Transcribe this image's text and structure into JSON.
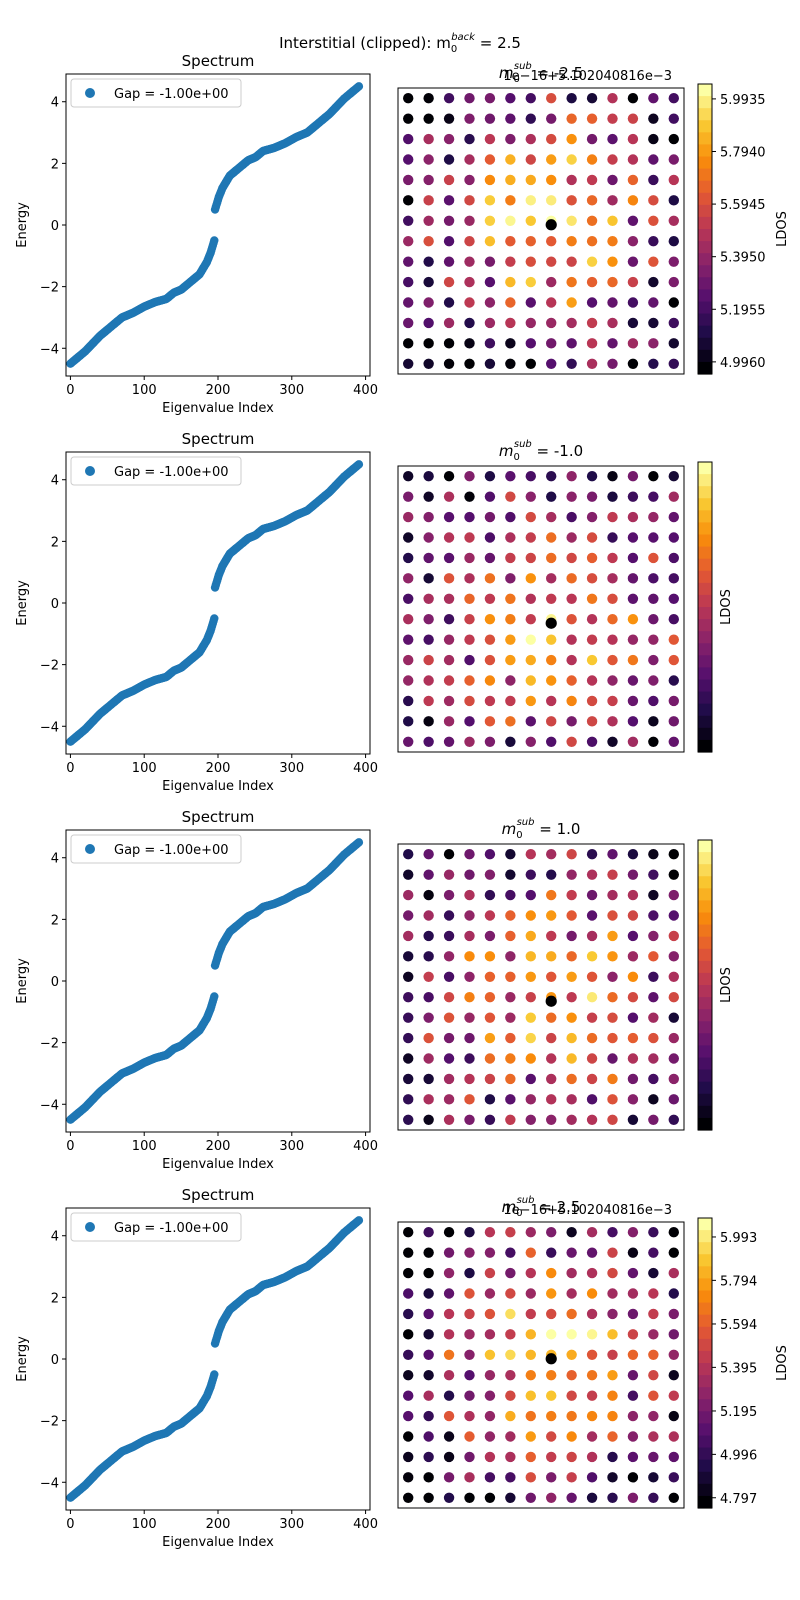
{
  "figure": {
    "suptitle_prefix": "Interstitial (clipped): m",
    "suptitle_sub": "0",
    "suptitle_sup": "back",
    "suptitle_suffix": " = 2.5"
  },
  "colors": {
    "series": "#1f77b4",
    "background": "#ffffff",
    "vacancy_marker": "#000000",
    "colormap": "inferno"
  },
  "chart_data": [
    {
      "type": "scatter",
      "title": "Spectrum",
      "xlabel": "Eigenvalue Index",
      "ylabel": "Energy",
      "xlim": [
        -6,
        406
      ],
      "ylim": [
        -4.9,
        4.9
      ],
      "xticks": [
        0,
        100,
        200,
        300,
        400
      ],
      "yticks": [
        -4,
        -2,
        0,
        2,
        4
      ],
      "legend": "upper-left",
      "series": [
        {
          "name": "Gap = -1.00e+00",
          "color": "#1f77b4",
          "n_points": 392,
          "x_knots": [
            0,
            10,
            20,
            30,
            40,
            55,
            70,
            85,
            100,
            115,
            130,
            140,
            150,
            160,
            175,
            185,
            190,
            195
          ],
          "y_knots": [
            -4.5,
            -4.3,
            -4.1,
            -3.85,
            -3.6,
            -3.3,
            -3.0,
            -2.85,
            -2.65,
            -2.5,
            -2.4,
            -2.2,
            -2.1,
            -1.9,
            -1.6,
            -1.2,
            -0.9,
            -0.5
          ]
        }
      ]
    },
    {
      "type": "heatmap",
      "title_prefix": "m",
      "title_sub": "0",
      "title_sup": "sub",
      "title_suffix": " = -2.5",
      "offset_text": "1e−16+5.102040816e−3",
      "colorbar_label": "LDOS",
      "colorbar_ticks": [
        "5.9935",
        "5.7940",
        "5.5945",
        "5.3950",
        "5.1955",
        "4.9960"
      ],
      "colorbar_tick_values": [
        5.9935,
        5.794,
        5.5945,
        5.395,
        5.1955,
        4.996
      ],
      "value_range": [
        4.95,
        6.05
      ],
      "grid_size": [
        14,
        14
      ],
      "vacancy_site": [
        7,
        6
      ],
      "pattern": "center"
    },
    {
      "type": "scatter",
      "title": "Spectrum",
      "xlabel": "Eigenvalue Index",
      "ylabel": "Energy",
      "xlim": [
        -6,
        406
      ],
      "ylim": [
        -4.9,
        4.9
      ],
      "xticks": [
        0,
        100,
        200,
        300,
        400
      ],
      "yticks": [
        -4,
        -2,
        0,
        2,
        4
      ],
      "legend": "upper-left",
      "series": [
        {
          "name": "Gap = -1.00e+00",
          "color": "#1f77b4",
          "n_points": 392,
          "x_knots": [
            0,
            10,
            20,
            30,
            40,
            55,
            70,
            85,
            100,
            115,
            130,
            140,
            150,
            160,
            175,
            185,
            190,
            195
          ],
          "y_knots": [
            -4.5,
            -4.3,
            -4.1,
            -3.85,
            -3.6,
            -3.3,
            -3.0,
            -2.85,
            -2.65,
            -2.5,
            -2.4,
            -2.2,
            -2.1,
            -1.9,
            -1.6,
            -1.2,
            -0.9,
            -0.5
          ]
        }
      ]
    },
    {
      "type": "heatmap",
      "title_prefix": "m",
      "title_sub": "0",
      "title_sup": "sub",
      "title_suffix": " = -1.0",
      "offset_text": "",
      "colorbar_label": "LDOS",
      "colorbar_ticks": [],
      "colorbar_tick_values": [],
      "value_range": [
        0,
        1
      ],
      "grid_size": [
        14,
        14
      ],
      "vacancy_site": [
        7,
        7
      ],
      "pattern": "ring"
    },
    {
      "type": "scatter",
      "title": "Spectrum",
      "xlabel": "Eigenvalue Index",
      "ylabel": "Energy",
      "xlim": [
        -6,
        406
      ],
      "ylim": [
        -4.9,
        4.9
      ],
      "xticks": [
        0,
        100,
        200,
        300,
        400
      ],
      "yticks": [
        -4,
        -2,
        0,
        2,
        4
      ],
      "legend": "upper-left",
      "series": [
        {
          "name": "Gap = -1.00e+00",
          "color": "#1f77b4",
          "n_points": 392,
          "x_knots": [
            0,
            10,
            20,
            30,
            40,
            55,
            70,
            85,
            100,
            115,
            130,
            140,
            150,
            160,
            175,
            185,
            190,
            195
          ],
          "y_knots": [
            -4.5,
            -4.3,
            -4.1,
            -3.85,
            -3.6,
            -3.3,
            -3.0,
            -2.85,
            -2.65,
            -2.5,
            -2.4,
            -2.2,
            -2.1,
            -1.9,
            -1.6,
            -1.2,
            -0.9,
            -0.5
          ]
        }
      ]
    },
    {
      "type": "heatmap",
      "title_prefix": "m",
      "title_sub": "0",
      "title_sup": "sub",
      "title_suffix": " = 1.0",
      "offset_text": "",
      "colorbar_label": "LDOS",
      "colorbar_ticks": [],
      "colorbar_tick_values": [],
      "value_range": [
        0,
        1
      ],
      "grid_size": [
        14,
        14
      ],
      "vacancy_site": [
        7,
        7
      ],
      "pattern": "ring"
    },
    {
      "type": "scatter",
      "title": "Spectrum",
      "xlabel": "Eigenvalue Index",
      "ylabel": "Energy",
      "xlim": [
        -6,
        406
      ],
      "ylim": [
        -4.9,
        4.9
      ],
      "xticks": [
        0,
        100,
        200,
        300,
        400
      ],
      "yticks": [
        -4,
        -2,
        0,
        2,
        4
      ],
      "legend": "upper-left",
      "series": [
        {
          "name": "Gap = -1.00e+00",
          "color": "#1f77b4",
          "n_points": 392,
          "x_knots": [
            0,
            10,
            20,
            30,
            40,
            55,
            70,
            85,
            100,
            115,
            130,
            140,
            150,
            160,
            175,
            185,
            190,
            195
          ],
          "y_knots": [
            -4.5,
            -4.3,
            -4.1,
            -3.85,
            -3.6,
            -3.3,
            -3.0,
            -2.85,
            -2.65,
            -2.5,
            -2.4,
            -2.2,
            -2.1,
            -1.9,
            -1.6,
            -1.2,
            -0.9,
            -0.5
          ]
        }
      ]
    },
    {
      "type": "heatmap",
      "title_prefix": "m",
      "title_sub": "0",
      "title_sup": "sub",
      "title_suffix": " = 2.5",
      "offset_text": "1e−16+5.102040816e−3",
      "colorbar_label": "LDOS",
      "colorbar_ticks": [
        "5.993",
        "5.794",
        "5.594",
        "5.395",
        "5.195",
        "4.996",
        "4.797"
      ],
      "colorbar_tick_values": [
        5.993,
        5.794,
        5.594,
        5.395,
        5.195,
        4.996,
        4.797
      ],
      "value_range": [
        4.75,
        6.08
      ],
      "grid_size": [
        14,
        14
      ],
      "vacancy_site": [
        7,
        6
      ],
      "pattern": "center"
    }
  ]
}
